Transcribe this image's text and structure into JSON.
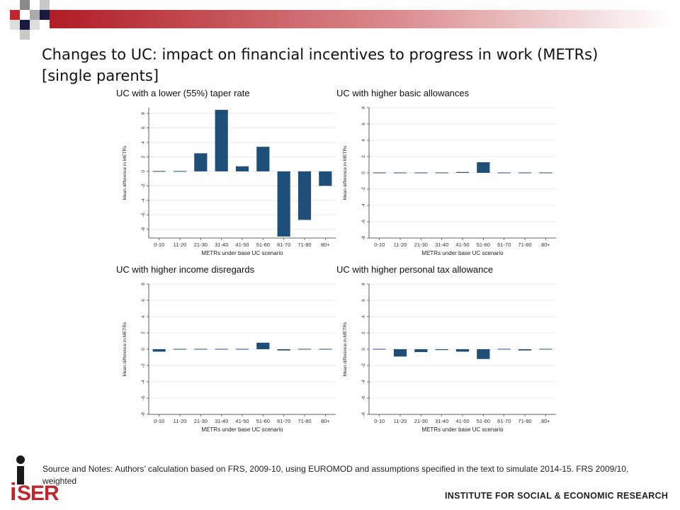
{
  "slide": {
    "title": "Changes to UC: impact on financial incentives to progress in work (METRs) [single parents]",
    "footnote": "Source and Notes: Authors’ calculation based on FRS, 2009-10, using EUROMOD and assumptions specified in the text to simulate 2014-15. FRS 2009/10, weighted",
    "institute": "INSTITUTE FOR SOCIAL & ECONOMIC RESEARCH",
    "logo_text": "iSER"
  },
  "colors": {
    "bar": "#1f4e79",
    "deco_red": "#c0272d",
    "deco_dark": "#1a1a40"
  },
  "chart_data": [
    {
      "type": "bar",
      "title": "UC with a lower (55%) taper rate",
      "xlabel": "METRs under base UC scenario",
      "ylabel": "Mean difference in METRs",
      "categories": [
        "0-10",
        "11-20",
        "21-30",
        "31-40",
        "41-50",
        "51-60",
        "61-70",
        "71-80",
        "80+"
      ],
      "values": [
        0.05,
        0,
        2.5,
        8.5,
        0.7,
        3.4,
        -9.0,
        -6.7,
        -2.0
      ],
      "yticks": [
        8,
        6,
        4,
        2,
        0,
        -2,
        -4,
        -6,
        -8
      ],
      "ylim": [
        -9.2,
        8.8
      ]
    },
    {
      "type": "bar",
      "title": "UC with higher basic allowances",
      "xlabel": "METRs under base UC scenario",
      "ylabel": "Mean difference in METRs",
      "categories": [
        "0-10",
        "11-20",
        "21-30",
        "31-40",
        "41-50",
        "51-60",
        "61-70",
        "71-80",
        "80+"
      ],
      "values": [
        0,
        0,
        0,
        0,
        0.1,
        1.3,
        0.05,
        0.05,
        0
      ],
      "yticks": [
        8,
        6,
        4,
        2,
        0,
        -2,
        -4,
        -6,
        -8
      ],
      "ylim": [
        -8,
        8
      ]
    },
    {
      "type": "bar",
      "title": "UC with higher income disregards",
      "xlabel": "METRs under base UC scenario",
      "ylabel": "Mean difference in METRs",
      "categories": [
        "0-10",
        "11-20",
        "21-30",
        "31-40",
        "41-50",
        "51-60",
        "61-70",
        "71-80",
        "80+"
      ],
      "values": [
        -0.3,
        0,
        0,
        -0.05,
        -0.05,
        0.8,
        -0.15,
        0,
        0
      ],
      "yticks": [
        8,
        6,
        4,
        2,
        0,
        -2,
        -4,
        -6,
        -8
      ],
      "ylim": [
        -8,
        8
      ]
    },
    {
      "type": "bar",
      "title": "UC with higher personal tax allowance",
      "xlabel": "METRs under base UC scenario",
      "ylabel": "Mean difference in METRs",
      "categories": [
        "0-10",
        "11-20",
        "21-30",
        "31-40",
        "41-50",
        "51-60",
        "61-70",
        "71-80",
        "80+"
      ],
      "values": [
        0,
        -0.9,
        -0.35,
        -0.1,
        -0.3,
        -1.2,
        -0.05,
        -0.15,
        0
      ],
      "yticks": [
        8,
        6,
        4,
        2,
        0,
        -2,
        -4,
        -6,
        -8
      ],
      "ylim": [
        -8,
        8
      ]
    }
  ]
}
